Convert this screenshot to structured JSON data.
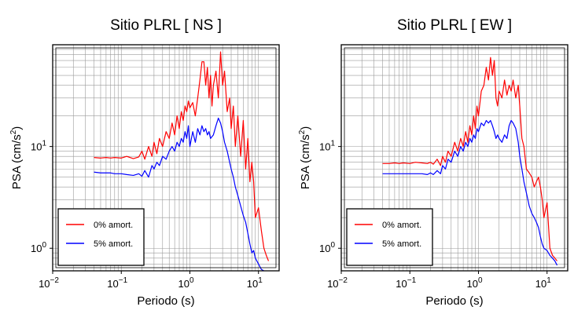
{
  "chart_data": [
    {
      "type": "line",
      "title": "Sitio PLRL [ NS ]",
      "xlabel": "Periodo (s)",
      "ylabel_main": "PSA (cm/s",
      "ylabel_sup": "2",
      "ylabel_close": ")",
      "x_scale": "log",
      "y_scale": "log",
      "xlim": [
        0.01,
        20
      ],
      "ylim": [
        0.6,
        100
      ],
      "x_ticks": [
        {
          "v": 0.01,
          "base": "10",
          "exp": "−2"
        },
        {
          "v": 0.1,
          "base": "10",
          "exp": "−1"
        },
        {
          "v": 1,
          "base": "10",
          "exp": "0"
        },
        {
          "v": 10,
          "base": "10",
          "exp": "1"
        }
      ],
      "y_ticks": [
        {
          "v": 1,
          "base": "10",
          "exp": "0"
        },
        {
          "v": 10,
          "base": "10",
          "exp": "1"
        }
      ],
      "grid": true,
      "legend_position": "bottom-left",
      "series": [
        {
          "name": "0% amort.",
          "color": "#ff0000",
          "x": [
            0.04,
            0.05,
            0.06,
            0.07,
            0.08,
            0.1,
            0.12,
            0.15,
            0.18,
            0.2,
            0.22,
            0.25,
            0.28,
            0.3,
            0.33,
            0.36,
            0.4,
            0.45,
            0.5,
            0.55,
            0.6,
            0.65,
            0.7,
            0.75,
            0.8,
            0.85,
            0.9,
            0.95,
            1.0,
            1.1,
            1.2,
            1.3,
            1.4,
            1.5,
            1.6,
            1.7,
            1.8,
            1.9,
            2.0,
            2.1,
            2.2,
            2.4,
            2.6,
            2.8,
            3.0,
            3.2,
            3.5,
            3.8,
            4.0,
            4.3,
            4.6,
            5.0,
            5.5,
            6.0,
            6.5,
            7.0,
            7.5,
            8.0,
            8.5,
            9.0,
            10.0,
            11.0,
            12.0,
            13.0,
            14.0
          ],
          "y": [
            7.8,
            7.7,
            7.8,
            7.7,
            7.8,
            7.7,
            8.0,
            7.6,
            7.9,
            9.0,
            7.5,
            10.0,
            8.0,
            11.0,
            8.5,
            12.0,
            10.0,
            14.0,
            12.0,
            17.0,
            13.0,
            20.0,
            15.0,
            22.0,
            18.0,
            25.0,
            22.0,
            28.0,
            24.0,
            27.0,
            20.0,
            30.0,
            45.0,
            68.0,
            68.0,
            40.0,
            60.0,
            30.0,
            50.0,
            25.0,
            40.0,
            55.0,
            30.0,
            85.0,
            40.0,
            55.0,
            22.0,
            30.0,
            15.0,
            25.0,
            10.0,
            20.0,
            8.0,
            18.0,
            6.0,
            12.0,
            4.5,
            7.0,
            4.5,
            2.0,
            2.5,
            1.5,
            1.0,
            0.85,
            0.75
          ]
        },
        {
          "name": "5% amort.",
          "color": "#0000ff",
          "x": [
            0.04,
            0.05,
            0.06,
            0.07,
            0.08,
            0.1,
            0.12,
            0.15,
            0.18,
            0.2,
            0.22,
            0.25,
            0.28,
            0.3,
            0.33,
            0.36,
            0.4,
            0.45,
            0.5,
            0.55,
            0.6,
            0.65,
            0.7,
            0.75,
            0.8,
            0.85,
            0.9,
            0.95,
            1.0,
            1.1,
            1.2,
            1.3,
            1.4,
            1.5,
            1.6,
            1.7,
            1.8,
            1.9,
            2.0,
            2.2,
            2.4,
            2.6,
            2.8,
            3.0,
            3.2,
            3.5,
            3.8,
            4.0,
            4.3,
            4.6,
            5.0,
            5.5,
            6.0,
            6.5,
            7.0,
            7.5,
            8.0,
            8.5,
            9.0,
            10.0,
            11.0,
            12.0
          ],
          "y": [
            5.6,
            5.5,
            5.5,
            5.5,
            5.4,
            5.4,
            5.3,
            5.2,
            5.4,
            5.1,
            5.8,
            5.0,
            6.5,
            6.0,
            7.0,
            6.5,
            8.0,
            7.5,
            9.0,
            10.0,
            9.0,
            11.0,
            10.0,
            12.0,
            11.0,
            14.0,
            12.0,
            16.0,
            10.0,
            14.0,
            11.0,
            15.0,
            13.0,
            16.0,
            14.0,
            15.0,
            13.0,
            14.0,
            12.0,
            13.0,
            16.0,
            19.0,
            17.0,
            14.0,
            11.0,
            9.0,
            7.0,
            6.0,
            5.0,
            4.0,
            3.3,
            2.6,
            2.1,
            1.8,
            1.4,
            1.1,
            0.9,
            0.95,
            0.8,
            0.7,
            0.62,
            0.6
          ]
        }
      ]
    },
    {
      "type": "line",
      "title": "Sitio PLRL [ EW ]",
      "xlabel": "Periodo (s)",
      "ylabel_main": "PSA (cm/s",
      "ylabel_sup": "2",
      "ylabel_close": ")",
      "x_scale": "log",
      "y_scale": "log",
      "xlim": [
        0.01,
        20
      ],
      "ylim": [
        0.6,
        100
      ],
      "x_ticks": [
        {
          "v": 0.01,
          "base": "10",
          "exp": "−2"
        },
        {
          "v": 0.1,
          "base": "10",
          "exp": "−1"
        },
        {
          "v": 1,
          "base": "10",
          "exp": "0"
        },
        {
          "v": 10,
          "base": "10",
          "exp": "1"
        }
      ],
      "y_ticks": [
        {
          "v": 1,
          "base": "10",
          "exp": "0"
        },
        {
          "v": 10,
          "base": "10",
          "exp": "1"
        }
      ],
      "grid": true,
      "legend_position": "bottom-left",
      "series": [
        {
          "name": "0% amort.",
          "color": "#ff0000",
          "x": [
            0.04,
            0.05,
            0.06,
            0.07,
            0.08,
            0.1,
            0.12,
            0.15,
            0.18,
            0.2,
            0.22,
            0.25,
            0.28,
            0.3,
            0.33,
            0.36,
            0.4,
            0.45,
            0.5,
            0.55,
            0.6,
            0.65,
            0.7,
            0.75,
            0.8,
            0.85,
            0.9,
            0.95,
            1.0,
            1.1,
            1.2,
            1.3,
            1.4,
            1.5,
            1.6,
            1.7,
            1.8,
            1.9,
            2.0,
            2.2,
            2.4,
            2.6,
            2.8,
            3.0,
            3.2,
            3.5,
            3.8,
            4.0,
            4.3,
            4.6,
            5.0,
            5.5,
            6.0,
            6.5,
            7.0,
            7.5,
            8.0,
            8.5,
            9.0,
            10.0,
            11.0,
            12.0,
            13.0,
            14.0
          ],
          "y": [
            6.8,
            6.8,
            6.9,
            6.8,
            6.9,
            6.8,
            7.0,
            6.9,
            6.8,
            7.0,
            6.7,
            7.5,
            6.5,
            8.0,
            7.0,
            9.0,
            8.0,
            11.0,
            9.0,
            12.0,
            10.0,
            14.0,
            11.0,
            16.0,
            13.0,
            20.0,
            15.0,
            25.0,
            20.0,
            35.0,
            40.0,
            60.0,
            45.0,
            75.0,
            50.0,
            70.0,
            30.0,
            25.0,
            35.0,
            30.0,
            45.0,
            32.0,
            40.0,
            35.0,
            45.0,
            30.0,
            40.0,
            25.0,
            12.0,
            10.0,
            6.0,
            5.5,
            5.0,
            4.0,
            4.5,
            5.0,
            4.0,
            3.0,
            2.0,
            2.8,
            1.0,
            0.85,
            0.8,
            0.75
          ]
        },
        {
          "name": "5% amort.",
          "color": "#0000ff",
          "x": [
            0.04,
            0.05,
            0.06,
            0.07,
            0.08,
            0.1,
            0.12,
            0.15,
            0.18,
            0.2,
            0.22,
            0.25,
            0.28,
            0.3,
            0.33,
            0.36,
            0.4,
            0.45,
            0.5,
            0.55,
            0.6,
            0.65,
            0.7,
            0.75,
            0.8,
            0.85,
            0.9,
            0.95,
            1.0,
            1.1,
            1.2,
            1.3,
            1.4,
            1.5,
            1.6,
            1.7,
            1.8,
            1.9,
            2.0,
            2.2,
            2.4,
            2.6,
            2.8,
            3.0,
            3.2,
            3.5,
            3.8,
            4.0,
            4.3,
            4.6,
            5.0,
            5.5,
            6.0,
            6.5,
            7.0,
            7.5,
            8.0,
            8.5,
            9.0,
            10.0,
            11.0,
            12.0,
            13.0,
            14.0
          ],
          "y": [
            5.4,
            5.4,
            5.4,
            5.4,
            5.4,
            5.4,
            5.4,
            5.4,
            5.3,
            5.5,
            5.3,
            5.8,
            5.4,
            6.5,
            6.0,
            7.5,
            7.0,
            9.0,
            8.0,
            10.0,
            9.0,
            11.0,
            10.0,
            12.0,
            11.0,
            13.0,
            12.0,
            15.0,
            14.0,
            17.0,
            16.0,
            18.0,
            17.0,
            18.0,
            16.0,
            14.0,
            12.0,
            13.0,
            12.0,
            11.0,
            13.0,
            12.0,
            16.0,
            18.0,
            17.0,
            15.0,
            11.0,
            8.0,
            6.0,
            4.5,
            3.5,
            2.6,
            2.2,
            2.0,
            1.8,
            1.6,
            1.3,
            1.1,
            1.0,
            0.95,
            0.85,
            0.8,
            0.75,
            0.68
          ]
        }
      ]
    }
  ]
}
